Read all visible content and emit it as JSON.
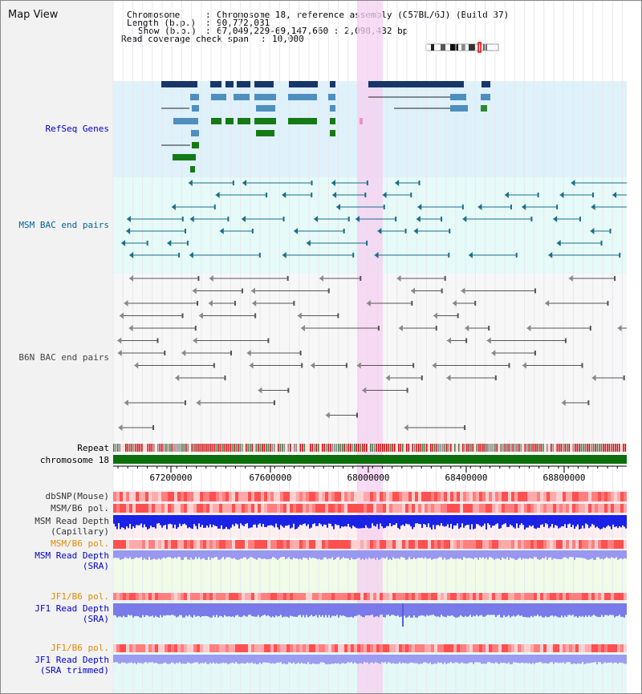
{
  "header": {
    "title": "Map View",
    "chromosome_key": "Chromosome",
    "chromosome_val": "Chromosome 18, reference assembly (C57BL/6J) (Build 37)",
    "length_key": "Length (b.p.)",
    "length_val": "90,772,031",
    "show_key": "Show (b.p.)",
    "show_val": "67,049,229-69,147,660 : 2,098,432 bp",
    "span_key": "Read coverage check span",
    "span_val": "10,000"
  },
  "tracks": {
    "refseq": "RefSeq Genes",
    "msm_bac": "MSM BAC end pairs",
    "b6n_bac": "B6N BAC end pairs",
    "repeat": "Repeat",
    "chromosome": "chromosome 18",
    "dbsnp": "dbSNP(Mouse)",
    "msm_b6_pol": "MSM/B6 pol.",
    "msm_depth_cap_1": "MSM Read Depth",
    "msm_depth_cap_2": "(Capillary)",
    "msm_b6_pol2": "MSM/B6 pol.",
    "msm_depth_sra_1": "MSM Read Depth",
    "msm_depth_sra_2": "(SRA)",
    "jf1_b6_pol": "JF1/B6 pol.",
    "jf1_depth_1": "JF1 Read Depth",
    "jf1_depth_2": "(SRA)",
    "jf1_b6_pol2": "JF1/B6 pol.",
    "jf1_trim_1": "JF1 Read Depth",
    "jf1_trim_2": "(SRA trimmed)"
  },
  "axis": {
    "ticks": [
      "67200000",
      "67600000",
      "68000000",
      "68400000",
      "68800000"
    ]
  },
  "colors": {
    "refseq_bg": "#dff1fa",
    "msm_bg": "#e6faf8",
    "b6n_bg": "#f6f6f6",
    "highlight": "#f6d2f2",
    "blue_label": "#0000cc",
    "orange_label": "#e08a00",
    "dark_label": "#333333"
  }
}
